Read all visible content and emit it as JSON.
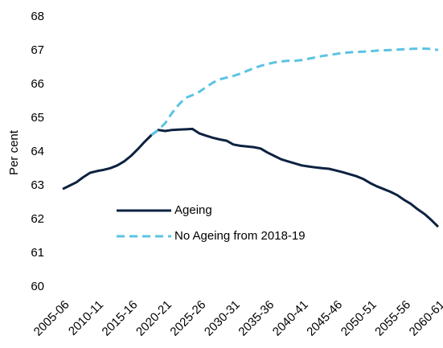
{
  "chart_data": {
    "type": "line",
    "y_label": "Per cent",
    "categories": [
      "2005-06",
      null,
      null,
      null,
      null,
      "2010-11",
      null,
      null,
      null,
      null,
      "2015-16",
      null,
      null,
      null,
      null,
      "2020-21",
      null,
      null,
      null,
      null,
      "2025-26",
      null,
      null,
      null,
      null,
      "2030-31",
      null,
      null,
      null,
      null,
      "2035-36",
      null,
      null,
      null,
      null,
      "2040-41",
      null,
      null,
      null,
      null,
      "2045-46",
      null,
      null,
      null,
      null,
      "2050-51",
      null,
      null,
      null,
      null,
      "2055-56",
      null,
      null,
      null,
      null,
      "2060-61"
    ],
    "series": [
      {
        "name": "Ageing",
        "color": "#0d2240",
        "dashed": false,
        "values": [
          62.9,
          63.0,
          63.1,
          63.25,
          63.38,
          63.43,
          63.47,
          63.52,
          63.6,
          63.72,
          63.88,
          64.08,
          64.3,
          64.5,
          64.65,
          64.62,
          64.65,
          64.66,
          64.67,
          64.68,
          64.55,
          64.48,
          64.42,
          64.37,
          64.33,
          64.22,
          64.18,
          64.16,
          64.14,
          64.1,
          63.98,
          63.88,
          63.78,
          63.72,
          63.66,
          63.6,
          63.57,
          63.54,
          63.52,
          63.5,
          63.45,
          63.4,
          63.34,
          63.28,
          63.2,
          63.08,
          62.98,
          62.9,
          62.82,
          62.72,
          62.58,
          62.46,
          62.3,
          62.16,
          61.98,
          61.78
        ]
      },
      {
        "name": "No Ageing from 2018-19",
        "color": "#5bc3e3",
        "dashed": true,
        "values": [
          null,
          null,
          null,
          null,
          null,
          null,
          null,
          null,
          null,
          null,
          null,
          null,
          null,
          64.5,
          64.65,
          64.85,
          65.15,
          65.4,
          65.6,
          65.68,
          65.78,
          65.92,
          66.05,
          66.15,
          66.2,
          66.25,
          66.32,
          66.4,
          66.48,
          66.55,
          66.6,
          66.65,
          66.68,
          66.7,
          66.7,
          66.72,
          66.76,
          66.8,
          66.84,
          66.87,
          66.9,
          66.93,
          66.95,
          66.96,
          66.97,
          66.98,
          67.0,
          67.01,
          67.02,
          67.03,
          67.04,
          67.05,
          67.06,
          67.06,
          67.05,
          67.02
        ]
      }
    ],
    "ylim": [
      60,
      68
    ],
    "yticks": [
      60,
      61,
      62,
      63,
      64,
      65,
      66,
      67,
      68
    ],
    "grid": false
  }
}
